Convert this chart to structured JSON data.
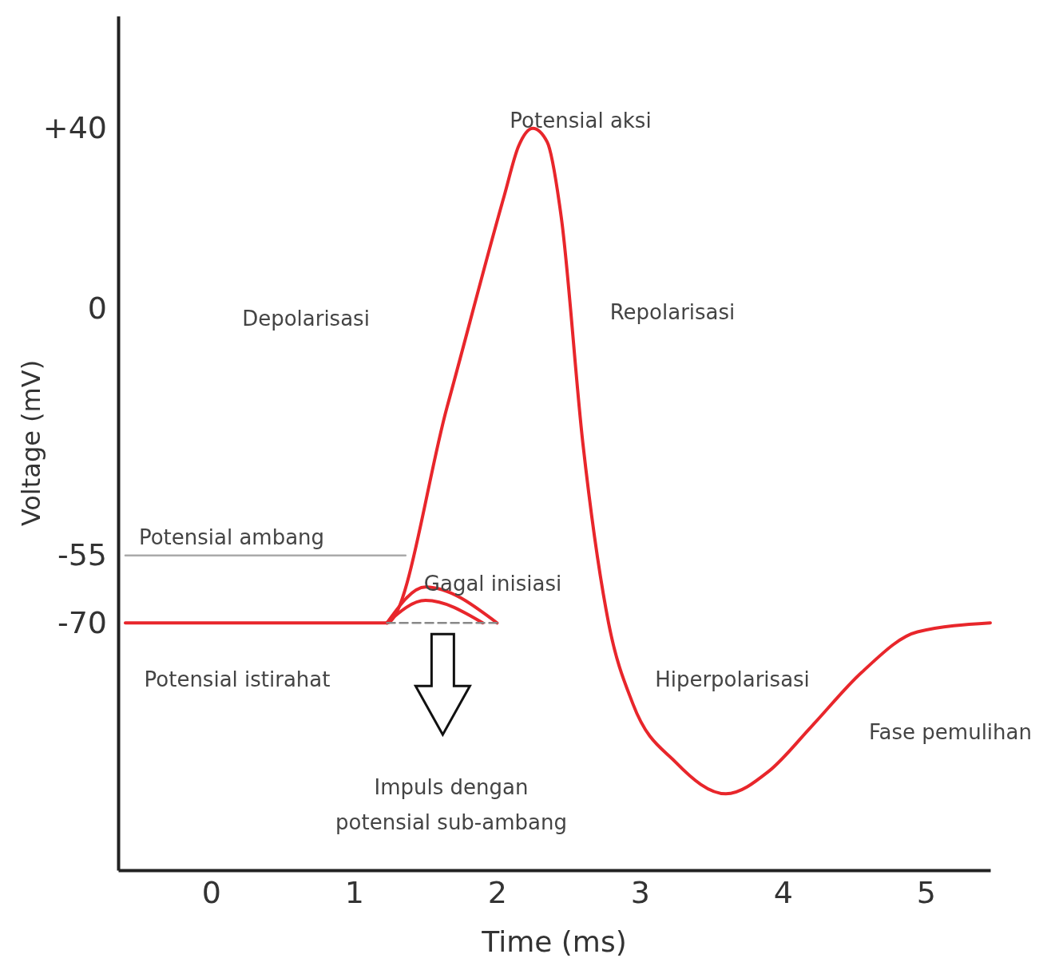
{
  "chart_data": {
    "type": "line",
    "xlabel": "Time (ms)",
    "ylabel": "Voltage (mV)",
    "xlim": [
      -0.65,
      5.45
    ],
    "xticks": [
      0,
      1,
      2,
      3,
      4,
      5
    ],
    "ylim": [
      -125,
      65
    ],
    "yticks": [
      {
        "value": 40,
        "label": "+40"
      },
      0,
      -55,
      -70
    ],
    "grid": false,
    "marker": "none",
    "series": [
      {
        "color": "#e8262b",
        "line_style": "solid",
        "x": [
          -0.6,
          1.23,
          1.65,
          2.05,
          2.15,
          2.25,
          2.35,
          2.45,
          2.6,
          2.78,
          2.95,
          3.25,
          3.6,
          3.9,
          4.2,
          4.55,
          4.94,
          5.45
        ],
        "values": [
          -70,
          -70,
          -22,
          25,
          36,
          40,
          37,
          20,
          -30,
          -70,
          -88,
          -101,
          -108,
          -103,
          -93,
          -81,
          -72,
          -70
        ]
      },
      {
        "color": "#e8262b",
        "line_style": "solid",
        "x": [
          1.23,
          1.5,
          2.0
        ],
        "values": [
          -70,
          -62,
          -70
        ]
      },
      {
        "color": "#e8262b",
        "line_style": "solid",
        "x": [
          1.23,
          1.5,
          1.9
        ],
        "values": [
          -70,
          -65,
          -70
        ]
      },
      {
        "color": "#888888",
        "line_style": "dashed",
        "x": [
          1.23,
          2.0
        ],
        "values": [
          -70,
          -70
        ]
      },
      {
        "color": "#aaaaaa",
        "line_style": "solid",
        "x": [
          -0.6,
          1.36
        ],
        "values": [
          -55,
          -55
        ]
      }
    ],
    "annotations": [
      "Potensial aksi",
      "Depolarisasi",
      "Repolarisasi",
      "Potensial ambang",
      "Gagal inisiasi",
      "Potensial istirahat",
      "Hiperpolarisasi",
      "Fase pemulihan",
      "Impuls dengan\npotensial  sub-ambang"
    ]
  }
}
